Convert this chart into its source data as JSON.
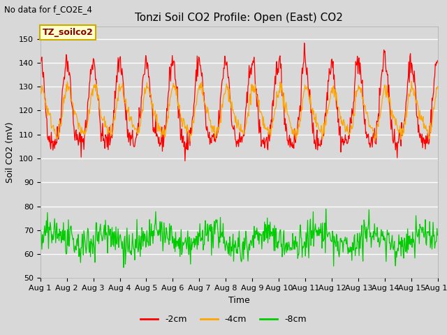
{
  "title": "Tonzi Soil CO2 Profile: Open (East) CO2",
  "top_left_text": "No data for f_CO2E_4",
  "ylabel": "Soil CO2 (mV)",
  "xlabel": "Time",
  "ylim": [
    50,
    155
  ],
  "yticks": [
    50,
    60,
    70,
    80,
    90,
    100,
    110,
    120,
    130,
    140,
    150
  ],
  "bg_color": "#d8d8d8",
  "plot_bg_color": "#d8d8d8",
  "color_2cm": "#ff0000",
  "color_4cm": "#ffa500",
  "color_8cm": "#00cc00",
  "legend_labels": [
    "-2cm",
    "-4cm",
    "-8cm"
  ],
  "legend_colors": [
    "#ff0000",
    "#ffa500",
    "#00cc00"
  ],
  "watermark_text": "TZ_soilco2",
  "watermark_bg": "#ffffcc",
  "watermark_border": "#ccaa00",
  "num_days": 15,
  "points_per_day": 48,
  "title_fontsize": 11,
  "tick_fontsize": 8,
  "ylabel_fontsize": 9,
  "xlabel_fontsize": 9,
  "lw_2cm": 0.9,
  "lw_4cm": 0.9,
  "lw_8cm": 0.9
}
